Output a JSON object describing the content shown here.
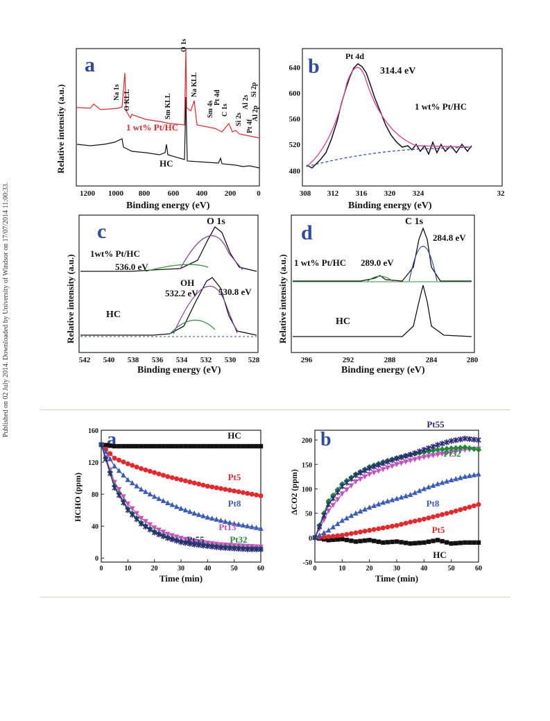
{
  "sidebar": {
    "text": "Published on 02 July 2014. Downloaded by University of Windsor on 17/07/2014 11:00:33."
  },
  "figure1": {
    "a": {
      "letter": "a",
      "ylabel": "Relative intensity (a.u.)",
      "xlabel": "Binding energy (eV)",
      "xticks": [
        "1200",
        "1000",
        "800",
        "600",
        "400",
        "200",
        "0"
      ],
      "series": [
        {
          "name": "1 wt% Pt/HC",
          "color": "#e8272b"
        },
        {
          "name": "HC",
          "color": "#111111"
        }
      ],
      "peaks": [
        "Na 1s",
        "O KLL",
        "Sm KLL",
        "O 1s",
        "Na KLL",
        "Sm 4s",
        "Pt 4d",
        "C 1s",
        "Si 2s",
        "Al 2s",
        "Si 2p",
        "Al 2p",
        "Pt 4f"
      ]
    },
    "b": {
      "letter": "b",
      "ylabel": "",
      "xlabel": "Binding energy (eV)",
      "xticks": [
        "308",
        "312",
        "316",
        "320",
        "324",
        "32"
      ],
      "yticks": [
        "480",
        "520",
        "560",
        "600",
        "640"
      ],
      "peak_label": "Pt 4d",
      "value_label": "314.4 eV",
      "sample": "1 wt% Pt/HC"
    },
    "c": {
      "letter": "c",
      "ylabel": "Relative intensity (a.u.)",
      "xlabel": "Binding energy (eV)",
      "xticks": [
        "542",
        "540",
        "538",
        "536",
        "534",
        "532",
        "530",
        "528"
      ],
      "labels": [
        "O 1s",
        "1wt% Pt/HC",
        "536.0 eV",
        "OH",
        "532.2 eV",
        "530.8 eV",
        "HC"
      ]
    },
    "d": {
      "letter": "d",
      "ylabel": "Relative intensity (a.u.)",
      "xlabel": "Binding energy (eV)",
      "xticks": [
        "296",
        "292",
        "288",
        "284",
        "280"
      ],
      "labels": [
        "C 1s",
        "284.8 eV",
        "1 wt% Pt/HC",
        "289.0 eV",
        "HC"
      ]
    }
  },
  "chart_data": [
    {
      "type": "line",
      "panel": "a",
      "title": "",
      "xlabel": "Time (min)",
      "ylabel": "HCHO (ppm)",
      "xlim": [
        0,
        60
      ],
      "ylim": [
        -5,
        160
      ],
      "xticks": [
        "0",
        "10",
        "20",
        "30",
        "40",
        "50",
        "60"
      ],
      "yticks": [
        "0",
        "40",
        "80",
        "120",
        "160"
      ],
      "x": [
        0,
        5,
        10,
        15,
        20,
        25,
        30,
        35,
        40,
        45,
        50,
        55,
        60
      ],
      "series": [
        {
          "name": "HC",
          "color": "#111111",
          "marker": "square",
          "values": [
            142,
            140,
            140,
            140,
            140,
            140,
            140,
            140,
            140,
            140,
            140,
            140,
            140
          ]
        },
        {
          "name": "Pt5",
          "color": "#e8272b",
          "marker": "circle",
          "values": [
            142,
            125,
            118,
            112,
            107,
            102,
            98,
            94,
            90,
            87,
            84,
            81,
            78
          ]
        },
        {
          "name": "Pt8",
          "color": "#3a5bb8",
          "marker": "triangle",
          "values": [
            142,
            115,
            98,
            86,
            77,
            69,
            62,
            56,
            51,
            47,
            43,
            40,
            37
          ]
        },
        {
          "name": "Pt13",
          "color": "#c64fbf",
          "marker": "triangle-down",
          "values": [
            142,
            95,
            68,
            50,
            38,
            30,
            25,
            21,
            19,
            17,
            16,
            15,
            14
          ]
        },
        {
          "name": "Pt32",
          "color": "#1f8a3a",
          "marker": "diamond",
          "values": [
            142,
            90,
            62,
            44,
            33,
            26,
            21,
            18,
            16,
            14,
            13,
            12,
            11
          ]
        },
        {
          "name": "Pt55",
          "color": "#2b2b7a",
          "marker": "star",
          "values": [
            142,
            88,
            60,
            43,
            32,
            25,
            20,
            17,
            15,
            13,
            12,
            11,
            11
          ]
        }
      ]
    },
    {
      "type": "line",
      "panel": "b",
      "title": "",
      "xlabel": "Time (min)",
      "ylabel": "ΔCO2 (ppm)",
      "xlim": [
        0,
        60
      ],
      "ylim": [
        -50,
        220
      ],
      "xticks": [
        "0",
        "10",
        "20",
        "30",
        "40",
        "50",
        "60"
      ],
      "yticks": [
        "-50",
        "0",
        "50",
        "100",
        "150",
        "200"
      ],
      "x": [
        0,
        5,
        10,
        15,
        20,
        25,
        30,
        35,
        40,
        45,
        50,
        55,
        60
      ],
      "series": [
        {
          "name": "HC",
          "color": "#111111",
          "marker": "square",
          "values": [
            0,
            -5,
            -3,
            -8,
            -5,
            -10,
            -8,
            -12,
            -10,
            -5,
            -12,
            -10,
            -10
          ]
        },
        {
          "name": "Pt5",
          "color": "#e8272b",
          "marker": "circle",
          "values": [
            0,
            2,
            5,
            10,
            15,
            20,
            25,
            32,
            38,
            45,
            52,
            60,
            68
          ]
        },
        {
          "name": "Pt8",
          "color": "#3a5bb8",
          "marker": "triangle",
          "values": [
            0,
            15,
            35,
            50,
            62,
            72,
            80,
            88,
            100,
            110,
            118,
            125,
            130
          ]
        },
        {
          "name": "Pt13",
          "color": "#c64fbf",
          "marker": "triangle-down",
          "values": [
            0,
            55,
            90,
            115,
            130,
            140,
            150,
            158,
            165,
            170,
            175,
            180,
            182
          ]
        },
        {
          "name": "Pt32",
          "color": "#1f8a3a",
          "marker": "diamond",
          "values": [
            0,
            75,
            110,
            130,
            145,
            155,
            163,
            170,
            175,
            180,
            183,
            185,
            180
          ]
        },
        {
          "name": "Pt55",
          "color": "#2b2b7a",
          "marker": "star",
          "values": [
            0,
            68,
            105,
            128,
            142,
            152,
            162,
            170,
            180,
            190,
            198,
            203,
            200
          ]
        }
      ]
    }
  ]
}
